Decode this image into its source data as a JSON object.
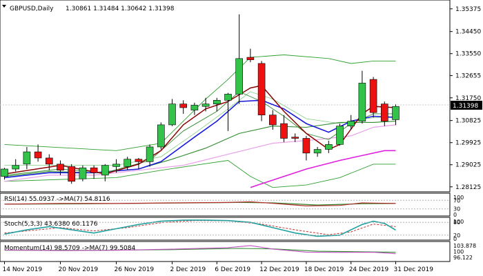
{
  "header": {
    "symbol": "GBPUSD,Daily",
    "ohlc": "1.30861 1.31484 1.30642 1.31398"
  },
  "price_axis": {
    "ticks": [
      "1.35375",
      "1.34450",
      "1.33550",
      "1.32655",
      "1.31750",
      "1.30825",
      "1.29925",
      "1.29025",
      "1.28125"
    ],
    "current": "1.31398"
  },
  "colors": {
    "bull": "#33c24a",
    "bear": "#ee1111",
    "ma_fast": "#8b0000",
    "ma_mid": "#2e8b2e",
    "ma_blue": "#1a1adc",
    "ma_magenta": "#e01ee0",
    "band": "#2ea02e",
    "band_mid": "#7fce7f",
    "ma_pink": "#e8a0e8",
    "rsi_line": "#b52b2b",
    "rsi_ma": "#2e8b2e",
    "stoch_main": "#20a0a0",
    "stoch_signal": "#c03030",
    "mom_line": "#c050c0",
    "mom_ma": "#2e8b2e"
  },
  "panels": {
    "rsi": {
      "label": "RSI(14) 55.0937 ->MA(7) 54.8116",
      "ticks": [
        "100",
        "70",
        "30",
        "0"
      ]
    },
    "stoch": {
      "label": "Stoch(5,3,3) 43.6380 60.1176",
      "ticks": [
        "100",
        "80",
        "20",
        "0"
      ]
    },
    "momentum": {
      "label": "Momentum(14) 98.5709 ->MA(7) 99.5084",
      "ticks": [
        "103.878",
        "100",
        "96.122"
      ]
    }
  },
  "x_axis": {
    "labels": [
      "14 Nov 2019",
      "20 Nov 2019",
      "26 Nov 2019",
      "2 Dec 2019",
      "6 Dec 2019",
      "12 Dec 2019",
      "18 Dec 2019",
      "24 Dec 2019",
      "31 Dec 2019"
    ]
  },
  "chart_data": {
    "type": "candlestick",
    "symbol": "GBPUSD",
    "timeframe": "Daily",
    "ylim": [
      1.2795,
      1.3565
    ],
    "candles": [
      {
        "o": 1.2855,
        "h": 1.289,
        "l": 1.2842,
        "c": 1.2885
      },
      {
        "o": 1.2885,
        "h": 1.2925,
        "l": 1.2875,
        "c": 1.29
      },
      {
        "o": 1.2905,
        "h": 1.2975,
        "l": 1.2885,
        "c": 1.2955
      },
      {
        "o": 1.2955,
        "h": 1.2985,
        "l": 1.2915,
        "c": 1.293
      },
      {
        "o": 1.293,
        "h": 1.2945,
        "l": 1.288,
        "c": 1.2905
      },
      {
        "o": 1.2905,
        "h": 1.292,
        "l": 1.286,
        "c": 1.288
      },
      {
        "o": 1.2895,
        "h": 1.2905,
        "l": 1.2825,
        "c": 1.2835
      },
      {
        "o": 1.2845,
        "h": 1.29,
        "l": 1.2835,
        "c": 1.289
      },
      {
        "o": 1.289,
        "h": 1.29,
        "l": 1.2845,
        "c": 1.287
      },
      {
        "o": 1.286,
        "h": 1.2905,
        "l": 1.2835,
        "c": 1.29
      },
      {
        "o": 1.2895,
        "h": 1.2925,
        "l": 1.287,
        "c": 1.2905
      },
      {
        "o": 1.2895,
        "h": 1.2935,
        "l": 1.288,
        "c": 1.2925
      },
      {
        "o": 1.2925,
        "h": 1.293,
        "l": 1.2885,
        "c": 1.2915
      },
      {
        "o": 1.2915,
        "h": 1.2985,
        "l": 1.2895,
        "c": 1.2975
      },
      {
        "o": 1.2975,
        "h": 1.3075,
        "l": 1.2965,
        "c": 1.3065
      },
      {
        "o": 1.3065,
        "h": 1.317,
        "l": 1.306,
        "c": 1.315
      },
      {
        "o": 1.315,
        "h": 1.3165,
        "l": 1.311,
        "c": 1.3135
      },
      {
        "o": 1.3125,
        "h": 1.3155,
        "l": 1.3105,
        "c": 1.3145
      },
      {
        "o": 1.314,
        "h": 1.3175,
        "l": 1.312,
        "c": 1.315
      },
      {
        "o": 1.315,
        "h": 1.3175,
        "l": 1.312,
        "c": 1.3165
      },
      {
        "o": 1.3165,
        "h": 1.3195,
        "l": 1.304,
        "c": 1.319
      },
      {
        "o": 1.319,
        "h": 1.3515,
        "l": 1.315,
        "c": 1.3335
      },
      {
        "o": 1.334,
        "h": 1.3375,
        "l": 1.332,
        "c": 1.333
      },
      {
        "o": 1.3315,
        "h": 1.3325,
        "l": 1.308,
        "c": 1.3105
      },
      {
        "o": 1.3105,
        "h": 1.3125,
        "l": 1.3045,
        "c": 1.3065
      },
      {
        "o": 1.307,
        "h": 1.3105,
        "l": 1.2995,
        "c": 1.301
      },
      {
        "o": 1.3015,
        "h": 1.303,
        "l": 1.2995,
        "c": 1.301
      },
      {
        "o": 1.301,
        "h": 1.302,
        "l": 1.292,
        "c": 1.295
      },
      {
        "o": 1.295,
        "h": 1.2975,
        "l": 1.2935,
        "c": 1.2965
      },
      {
        "o": 1.2965,
        "h": 1.3,
        "l": 1.295,
        "c": 1.2985
      },
      {
        "o": 1.2985,
        "h": 1.307,
        "l": 1.298,
        "c": 1.306
      },
      {
        "o": 1.306,
        "h": 1.3105,
        "l": 1.3045,
        "c": 1.308
      },
      {
        "o": 1.308,
        "h": 1.3285,
        "l": 1.307,
        "c": 1.3235
      },
      {
        "o": 1.325,
        "h": 1.326,
        "l": 1.3095,
        "c": 1.3115
      },
      {
        "o": 1.315,
        "h": 1.316,
        "l": 1.306,
        "c": 1.308
      },
      {
        "o": 1.3086,
        "h": 1.3148,
        "l": 1.3064,
        "c": 1.314
      }
    ],
    "overlays": [
      {
        "key": "band_upper",
        "color": "band",
        "width": 0.9,
        "pts": [
          [
            0,
            1.2985
          ],
          [
            10,
            1.296
          ],
          [
            14,
            1.299
          ],
          [
            16,
            1.308
          ],
          [
            18,
            1.317
          ],
          [
            20,
            1.325
          ],
          [
            22,
            1.334
          ],
          [
            25,
            1.335
          ],
          [
            29,
            1.3335
          ],
          [
            31,
            1.3315
          ],
          [
            33,
            1.3325
          ],
          [
            35,
            1.3325
          ]
        ]
      },
      {
        "key": "band_mid",
        "color": "band_mid",
        "width": 0.8,
        "pts": [
          [
            0,
            1.29
          ],
          [
            10,
            1.29
          ],
          [
            14,
            1.2935
          ],
          [
            17,
            1.303
          ],
          [
            20,
            1.313
          ],
          [
            22,
            1.32
          ],
          [
            24,
            1.317
          ],
          [
            27,
            1.309
          ],
          [
            30,
            1.307
          ],
          [
            32,
            1.309
          ],
          [
            35,
            1.31
          ]
        ]
      },
      {
        "key": "band_lower",
        "color": "band",
        "width": 0.9,
        "pts": [
          [
            0,
            1.2835
          ],
          [
            10,
            1.285
          ],
          [
            14,
            1.288
          ],
          [
            17,
            1.29
          ],
          [
            20,
            1.292
          ],
          [
            22,
            1.2855
          ],
          [
            24,
            1.281
          ],
          [
            27,
            1.282
          ],
          [
            30,
            1.285
          ],
          [
            33,
            1.2905
          ],
          [
            35,
            1.2905
          ]
        ]
      },
      {
        "key": "ma_pink",
        "color": "ma_pink",
        "width": 1.2,
        "pts": [
          [
            0,
            1.2835
          ],
          [
            4,
            1.286
          ],
          [
            8,
            1.286
          ],
          [
            12,
            1.288
          ],
          [
            16,
            1.29
          ],
          [
            20,
            1.2945
          ],
          [
            24,
            1.299
          ],
          [
            28,
            1.3005
          ],
          [
            31,
            1.302
          ],
          [
            33,
            1.3055
          ],
          [
            35,
            1.3065
          ]
        ]
      },
      {
        "key": "ma_magenta",
        "color": "ma_magenta",
        "width": 1.6,
        "pts": [
          [
            22,
            1.281
          ],
          [
            24,
            1.284
          ],
          [
            27,
            1.2885
          ],
          [
            30,
            1.292
          ],
          [
            32,
            1.294
          ],
          [
            34,
            1.296
          ],
          [
            35,
            1.296
          ]
        ]
      },
      {
        "key": "ma_mid",
        "color": "ma_mid",
        "width": 1.1,
        "pts": [
          [
            0,
            1.2855
          ],
          [
            4,
            1.2875
          ],
          [
            8,
            1.287
          ],
          [
            12,
            1.2885
          ],
          [
            15,
            1.2925
          ],
          [
            18,
            1.297
          ],
          [
            21,
            1.303
          ],
          [
            24,
            1.306
          ],
          [
            27,
            1.3055
          ],
          [
            30,
            1.3075
          ],
          [
            33,
            1.3075
          ],
          [
            35,
            1.308
          ]
        ]
      },
      {
        "key": "ma_blue",
        "color": "ma_blue",
        "width": 1.6,
        "pts": [
          [
            0,
            1.285
          ],
          [
            4,
            1.287
          ],
          [
            8,
            1.287
          ],
          [
            12,
            1.2885
          ],
          [
            14,
            1.2915
          ],
          [
            17,
            1.3015
          ],
          [
            19,
            1.308
          ],
          [
            21,
            1.316
          ],
          [
            23,
            1.3165
          ],
          [
            25,
            1.313
          ],
          [
            27,
            1.307
          ],
          [
            29,
            1.3035
          ],
          [
            31,
            1.308
          ],
          [
            33,
            1.31
          ],
          [
            35,
            1.3095
          ]
        ]
      },
      {
        "key": "ma_green_fast",
        "color": "ma_mid",
        "width": 0.9,
        "pts": [
          [
            0,
            1.286
          ],
          [
            5,
            1.2885
          ],
          [
            9,
            1.287
          ],
          [
            13,
            1.292
          ],
          [
            16,
            1.304
          ],
          [
            19,
            1.312
          ],
          [
            21,
            1.32
          ],
          [
            23,
            1.316
          ],
          [
            25,
            1.31
          ],
          [
            27,
            1.303
          ],
          [
            29,
            1.3005
          ],
          [
            31,
            1.307
          ],
          [
            33,
            1.311
          ],
          [
            35,
            1.311
          ]
        ]
      },
      {
        "key": "ma_fast",
        "color": "ma_fast",
        "width": 1.5,
        "pts": [
          [
            0,
            1.2865
          ],
          [
            5,
            1.29
          ],
          [
            9,
            1.2865
          ],
          [
            12,
            1.2905
          ],
          [
            14,
            1.296
          ],
          [
            16,
            1.3065
          ],
          [
            18,
            1.313
          ],
          [
            20,
            1.316
          ],
          [
            22,
            1.3215
          ],
          [
            23,
            1.3225
          ],
          [
            25,
            1.312
          ],
          [
            27,
            1.303
          ],
          [
            29,
            1.2965
          ],
          [
            30,
            1.2985
          ],
          [
            32,
            1.311
          ],
          [
            33,
            1.314
          ],
          [
            35,
            1.3135
          ]
        ]
      }
    ],
    "rsi": {
      "ylim": [
        0,
        100
      ],
      "line": [
        [
          0,
          52
        ],
        [
          5,
          55
        ],
        [
          10,
          55
        ],
        [
          15,
          58
        ],
        [
          20,
          60
        ],
        [
          22,
          63
        ],
        [
          24,
          56
        ],
        [
          27,
          44
        ],
        [
          30,
          46
        ],
        [
          32,
          58
        ],
        [
          33,
          57
        ],
        [
          35,
          55
        ]
      ],
      "ma": [
        [
          0,
          52
        ],
        [
          8,
          54
        ],
        [
          15,
          57
        ],
        [
          21,
          60
        ],
        [
          24,
          58
        ],
        [
          28,
          48
        ],
        [
          32,
          54
        ],
        [
          35,
          55
        ]
      ]
    },
    "stoch": {
      "ylim": [
        0,
        100
      ],
      "main": [
        [
          0,
          25
        ],
        [
          2,
          45
        ],
        [
          4,
          60
        ],
        [
          6,
          45
        ],
        [
          8,
          30
        ],
        [
          10,
          50
        ],
        [
          12,
          70
        ],
        [
          14,
          85
        ],
        [
          16,
          90
        ],
        [
          18,
          90
        ],
        [
          20,
          88
        ],
        [
          22,
          80
        ],
        [
          24,
          55
        ],
        [
          26,
          30
        ],
        [
          28,
          15
        ],
        [
          30,
          20
        ],
        [
          32,
          70
        ],
        [
          33,
          85
        ],
        [
          34,
          75
        ],
        [
          35,
          44
        ]
      ],
      "signal": [
        [
          0,
          30
        ],
        [
          3,
          45
        ],
        [
          5,
          55
        ],
        [
          8,
          40
        ],
        [
          11,
          55
        ],
        [
          14,
          78
        ],
        [
          17,
          88
        ],
        [
          20,
          87
        ],
        [
          23,
          72
        ],
        [
          26,
          45
        ],
        [
          29,
          22
        ],
        [
          31,
          35
        ],
        [
          33,
          72
        ],
        [
          35,
          60
        ]
      ]
    },
    "momentum": {
      "ylim": [
        94.0,
        106.0
      ],
      "ticks": [
        103.878,
        100,
        96.122
      ],
      "line": [
        [
          0,
          101.0
        ],
        [
          5,
          100.6
        ],
        [
          10,
          100.8
        ],
        [
          15,
          101.5
        ],
        [
          20,
          102.5
        ],
        [
          22,
          103.8
        ],
        [
          24,
          101.6
        ],
        [
          27,
          99.6
        ],
        [
          30,
          99.4
        ],
        [
          33,
          99.5
        ],
        [
          35,
          98.6
        ]
      ],
      "ma": [
        [
          0,
          100.8
        ],
        [
          8,
          100.8
        ],
        [
          15,
          101.2
        ],
        [
          21,
          102.0
        ],
        [
          24,
          101.7
        ],
        [
          28,
          100.2
        ],
        [
          32,
          99.8
        ],
        [
          35,
          99.5
        ]
      ]
    }
  }
}
